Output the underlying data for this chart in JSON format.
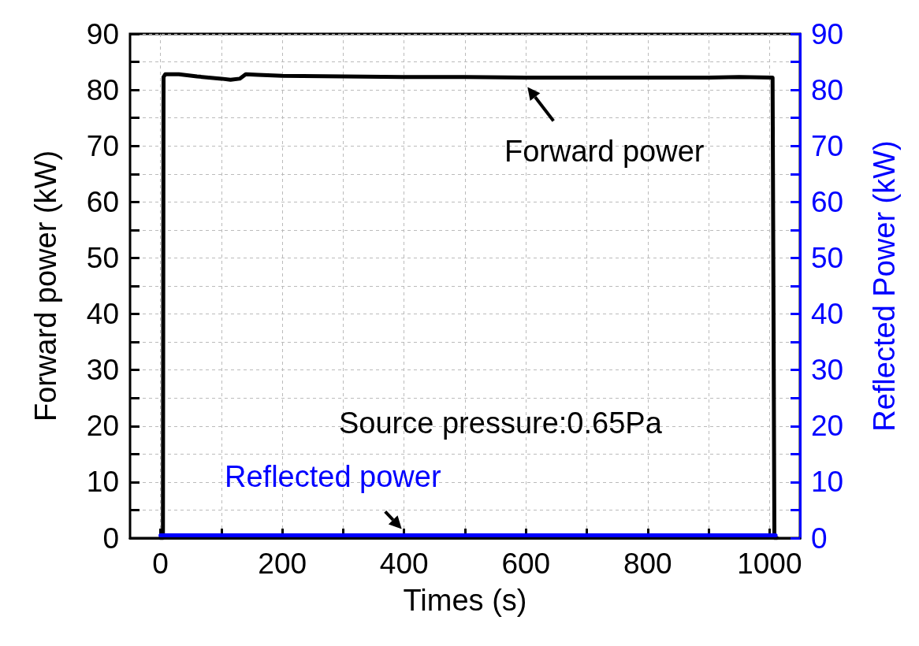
{
  "chart_data": {
    "type": "line",
    "xlabel": "Times (s)",
    "ylabel": "Forward power (kW)",
    "y2label": "Reflected Power (kW)",
    "xlim": [
      -50,
      1050
    ],
    "ylim": [
      0,
      90
    ],
    "y2lim": [
      0,
      90
    ],
    "xticks": [
      0,
      {
        "value": 100,
        "label": null
      },
      200,
      {
        "value": 300,
        "label": null
      },
      400,
      {
        "value": 500,
        "label": null
      },
      600,
      {
        "value": 700,
        "label": null
      },
      800,
      {
        "value": 900,
        "label": null
      },
      1000
    ],
    "yticks": [
      0,
      {
        "value": 5,
        "label": null
      },
      10,
      {
        "value": 15,
        "label": null
      },
      20,
      {
        "value": 25,
        "label": null
      },
      30,
      {
        "value": 35,
        "label": null
      },
      40,
      {
        "value": 45,
        "label": null
      },
      50,
      {
        "value": 55,
        "label": null
      },
      60,
      {
        "value": 65,
        "label": null
      },
      70,
      {
        "value": 75,
        "label": null
      },
      80,
      {
        "value": 85,
        "label": null
      },
      90
    ],
    "y2ticks": [
      0,
      {
        "value": 5,
        "label": null
      },
      10,
      {
        "value": 15,
        "label": null
      },
      20,
      {
        "value": 25,
        "label": null
      },
      30,
      {
        "value": 35,
        "label": null
      },
      40,
      {
        "value": 45,
        "label": null
      },
      50,
      {
        "value": 55,
        "label": null
      },
      60,
      {
        "value": 65,
        "label": null
      },
      70,
      {
        "value": 75,
        "label": null
      },
      80,
      {
        "value": 85,
        "label": null
      },
      90
    ],
    "grid": true,
    "marker": "none",
    "line_style": "solid",
    "annotations": [
      {
        "text": "Forward power",
        "x": 600,
        "y": 82.2
      },
      {
        "text": "Reflected power",
        "x": 400,
        "y": 0.5
      },
      "Source pressure:0.65Pa"
    ],
    "series": [
      {
        "color": "#000000",
        "x": [
          0,
          4,
          5,
          8,
          30,
          60,
          100,
          115,
          130,
          140,
          160,
          200,
          300,
          400,
          500,
          600,
          700,
          800,
          900,
          950,
          1005,
          1008,
          1012
        ],
        "values": [
          0,
          0,
          82.3,
          82.8,
          82.8,
          82.4,
          82,
          81.8,
          82,
          82.8,
          82.7,
          82.5,
          82.4,
          82.3,
          82.3,
          82.2,
          82.2,
          82.2,
          82.2,
          82.3,
          82.2,
          0,
          0
        ]
      },
      {
        "color": "#0000ff",
        "axis": "y2",
        "x": [
          0,
          200,
          400,
          600,
          800,
          1010
        ],
        "values": [
          0.5,
          0.5,
          0.5,
          0.5,
          0.5,
          0.5
        ]
      }
    ]
  }
}
